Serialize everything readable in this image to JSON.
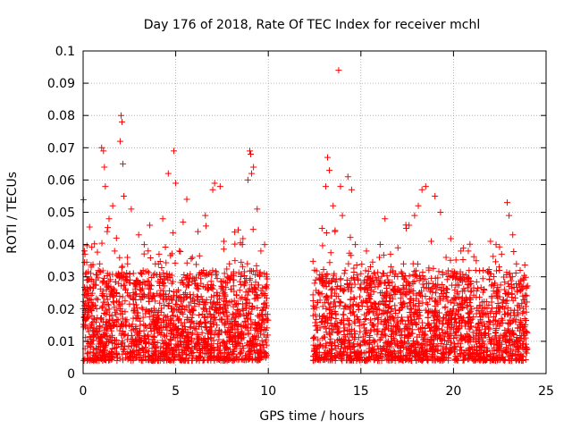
{
  "chart_data": {
    "type": "scatter",
    "title": "Day 176 of 2018, Rate Of TEC Index for receiver mchl",
    "xlabel": "GPS time / hours",
    "ylabel": "ROTI / TECUs",
    "xlim": [
      0,
      25
    ],
    "ylim": [
      0,
      0.1
    ],
    "x_ticks": [
      0,
      5,
      10,
      15,
      20,
      25
    ],
    "x_tick_labels": [
      "0",
      "5",
      "10",
      "15",
      "20",
      "25"
    ],
    "y_ticks": [
      0,
      0.01,
      0.02,
      0.03,
      0.04,
      0.05,
      0.06,
      0.07,
      0.08,
      0.09,
      0.1
    ],
    "y_tick_labels": [
      "0",
      "0.01",
      "0.02",
      "0.03",
      "0.04",
      "0.05",
      "0.06",
      "0.07",
      "0.08",
      "0.09",
      "0.1"
    ],
    "grid": true,
    "marker": "+",
    "colors": {
      "points": "#ff0000",
      "grid": "#a0a0a0",
      "axes": "#000000"
    },
    "data_gap": [
      10.0,
      12.4
    ],
    "series": [
      {
        "name": "ROTI",
        "points": [
          [
            0.1,
            0.037
          ],
          [
            0.2,
            0.029
          ],
          [
            0.3,
            0.013
          ],
          [
            0.5,
            0.021
          ],
          [
            0.7,
            0.016
          ],
          [
            0.9,
            0.034
          ],
          [
            1.0,
            0.07
          ],
          [
            1.1,
            0.069
          ],
          [
            1.15,
            0.064
          ],
          [
            1.2,
            0.058
          ],
          [
            1.3,
            0.044
          ],
          [
            1.4,
            0.048
          ],
          [
            1.6,
            0.052
          ],
          [
            1.7,
            0.038
          ],
          [
            1.8,
            0.042
          ],
          [
            1.9,
            0.031
          ],
          [
            2.0,
            0.072
          ],
          [
            2.05,
            0.08
          ],
          [
            2.1,
            0.078
          ],
          [
            2.15,
            0.065
          ],
          [
            2.2,
            0.055
          ],
          [
            2.4,
            0.034
          ],
          [
            2.6,
            0.051
          ],
          [
            2.8,
            0.028
          ],
          [
            3.0,
            0.043
          ],
          [
            3.3,
            0.04
          ],
          [
            3.6,
            0.046
          ],
          [
            3.9,
            0.034
          ],
          [
            4.1,
            0.037
          ],
          [
            4.3,
            0.048
          ],
          [
            4.5,
            0.03
          ],
          [
            4.6,
            0.062
          ],
          [
            4.9,
            0.069
          ],
          [
            5.0,
            0.059
          ],
          [
            5.2,
            0.038
          ],
          [
            5.4,
            0.047
          ],
          [
            5.6,
            0.054
          ],
          [
            5.9,
            0.036
          ],
          [
            6.2,
            0.044
          ],
          [
            6.6,
            0.049
          ],
          [
            7.0,
            0.057
          ],
          [
            7.1,
            0.059
          ],
          [
            7.4,
            0.058
          ],
          [
            7.6,
            0.041
          ],
          [
            7.9,
            0.034
          ],
          [
            8.2,
            0.035
          ],
          [
            8.6,
            0.04
          ],
          [
            8.9,
            0.06
          ],
          [
            9.0,
            0.069
          ],
          [
            9.05,
            0.068
          ],
          [
            9.1,
            0.062
          ],
          [
            9.2,
            0.064
          ],
          [
            9.4,
            0.051
          ],
          [
            9.6,
            0.038
          ],
          [
            9.8,
            0.04
          ],
          [
            9.9,
            0.03
          ],
          [
            12.5,
            0.028
          ],
          [
            12.7,
            0.025
          ],
          [
            12.9,
            0.045
          ],
          [
            13.1,
            0.058
          ],
          [
            13.2,
            0.067
          ],
          [
            13.3,
            0.063
          ],
          [
            13.5,
            0.052
          ],
          [
            13.6,
            0.044
          ],
          [
            13.8,
            0.094
          ],
          [
            13.9,
            0.058
          ],
          [
            14.0,
            0.049
          ],
          [
            14.3,
            0.061
          ],
          [
            14.5,
            0.057
          ],
          [
            14.7,
            0.04
          ],
          [
            15.0,
            0.031
          ],
          [
            15.3,
            0.038
          ],
          [
            15.7,
            0.031
          ],
          [
            16.0,
            0.036
          ],
          [
            16.3,
            0.048
          ],
          [
            16.6,
            0.037
          ],
          [
            17.0,
            0.039
          ],
          [
            17.3,
            0.034
          ],
          [
            17.6,
            0.046
          ],
          [
            17.9,
            0.049
          ],
          [
            18.1,
            0.052
          ],
          [
            18.3,
            0.057
          ],
          [
            18.5,
            0.058
          ],
          [
            18.8,
            0.041
          ],
          [
            19.0,
            0.055
          ],
          [
            19.3,
            0.05
          ],
          [
            19.6,
            0.036
          ],
          [
            20.0,
            0.03
          ],
          [
            20.4,
            0.038
          ],
          [
            20.8,
            0.038
          ],
          [
            21.2,
            0.032
          ],
          [
            21.6,
            0.032
          ],
          [
            22.0,
            0.041
          ],
          [
            22.3,
            0.04
          ],
          [
            22.6,
            0.037
          ],
          [
            22.9,
            0.053
          ],
          [
            23.0,
            0.049
          ],
          [
            23.2,
            0.043
          ],
          [
            23.4,
            0.034
          ],
          [
            23.6,
            0.032
          ],
          [
            23.8,
            0.029
          ]
        ]
      }
    ]
  }
}
